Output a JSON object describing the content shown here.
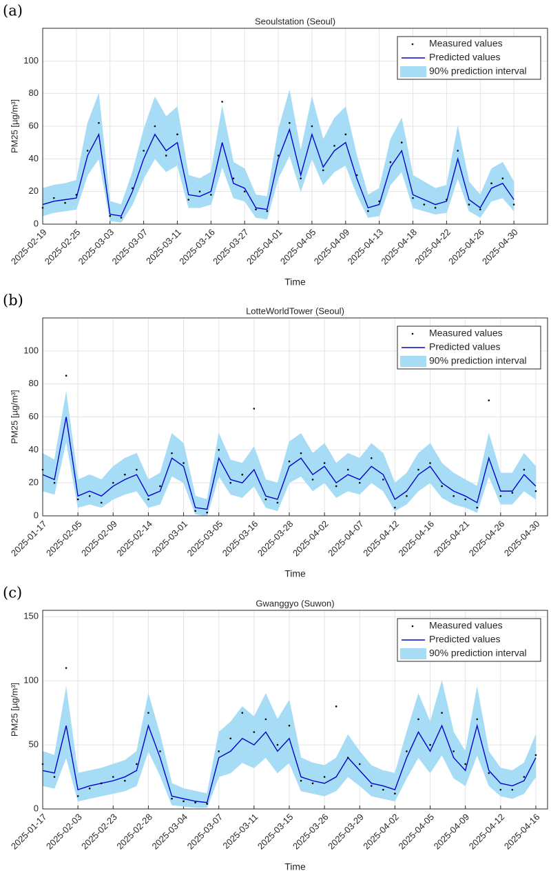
{
  "chart_data": [
    {
      "type": "line",
      "panel": "(a)",
      "title": "Seoulstation (Seoul)",
      "xlabel": "Time",
      "ylabel": "PM25 [µg/m³]",
      "xlim": [
        0,
        45
      ],
      "ylim": [
        0,
        120
      ],
      "yticks": [
        0,
        20,
        40,
        60,
        80,
        100
      ],
      "grid": true,
      "legend": "upper right",
      "xticks": [
        {
          "value": 0,
          "label": "2025-02-19"
        },
        {
          "value": 3,
          "label": "2025-02-25"
        },
        {
          "value": 6,
          "label": "2025-03-03"
        },
        {
          "value": 9,
          "label": "2025-03-07"
        },
        {
          "value": 12,
          "label": "2025-03-11"
        },
        {
          "value": 15,
          "label": "2025-03-16"
        },
        {
          "value": 18,
          "label": "2025-03-27"
        },
        {
          "value": 21,
          "label": "2025-04-01"
        },
        {
          "value": 24,
          "label": "2025-04-05"
        },
        {
          "value": 27,
          "label": "2025-04-09"
        },
        {
          "value": 30,
          "label": "2025-04-13"
        },
        {
          "value": 33,
          "label": "2025-04-18"
        },
        {
          "value": 36,
          "label": "2025-04-22"
        },
        {
          "value": 39,
          "label": "2025-04-26"
        },
        {
          "value": 42,
          "label": "2025-04-30"
        }
      ],
      "series": [
        {
          "name": "Measured values",
          "style": "points",
          "color": "#000000",
          "values": [
            10,
            16,
            13,
            18,
            45,
            62,
            5,
            4,
            22,
            45,
            60,
            42,
            55,
            15,
            20,
            18,
            75,
            28,
            20,
            9,
            8,
            42,
            62,
            28,
            60,
            33,
            48,
            55,
            30,
            8,
            14,
            38,
            50,
            16,
            12,
            10,
            15,
            45,
            12,
            9,
            25,
            28,
            12
          ]
        },
        {
          "name": "Predicted values",
          "style": "line",
          "color": "#0000cc",
          "values": [
            12,
            14,
            15,
            16,
            42,
            55,
            6,
            5,
            20,
            40,
            55,
            45,
            50,
            18,
            17,
            20,
            50,
            25,
            22,
            10,
            9,
            40,
            58,
            30,
            55,
            35,
            45,
            50,
            28,
            10,
            12,
            35,
            45,
            18,
            15,
            12,
            14,
            40,
            15,
            10,
            22,
            25,
            15
          ]
        },
        {
          "name": "90% prediction interval",
          "style": "band",
          "color": "#a6dcf5",
          "lower": [
            5,
            7,
            8,
            9,
            30,
            40,
            2,
            1,
            12,
            28,
            40,
            32,
            36,
            10,
            10,
            12,
            35,
            16,
            14,
            4,
            3,
            28,
            42,
            20,
            40,
            24,
            32,
            36,
            18,
            4,
            5,
            24,
            32,
            10,
            8,
            6,
            7,
            28,
            8,
            4,
            14,
            16,
            8
          ],
          "upper": [
            22,
            24,
            25,
            27,
            62,
            80,
            14,
            12,
            32,
            58,
            78,
            66,
            72,
            30,
            28,
            32,
            72,
            38,
            34,
            18,
            17,
            58,
            82,
            45,
            78,
            52,
            65,
            72,
            42,
            18,
            22,
            52,
            65,
            30,
            26,
            22,
            24,
            60,
            26,
            18,
            34,
            38,
            26
          ]
        }
      ]
    },
    {
      "type": "line",
      "panel": "(b)",
      "title": "LotteWorldTower (Seoul)",
      "xlabel": "Time",
      "ylabel": "PM25 [µg/m³]",
      "xlim": [
        0,
        43
      ],
      "ylim": [
        0,
        120
      ],
      "yticks": [
        0,
        20,
        40,
        60,
        80,
        100
      ],
      "grid": true,
      "legend": "upper right",
      "xticks": [
        {
          "value": 0,
          "label": "2025-01-17"
        },
        {
          "value": 3,
          "label": "2025-02-05"
        },
        {
          "value": 6,
          "label": "2025-02-09"
        },
        {
          "value": 9,
          "label": "2025-02-14"
        },
        {
          "value": 12,
          "label": "2025-03-01"
        },
        {
          "value": 15,
          "label": "2025-03-05"
        },
        {
          "value": 18,
          "label": "2025-03-16"
        },
        {
          "value": 21,
          "label": "2025-03-28"
        },
        {
          "value": 24,
          "label": "2025-04-02"
        },
        {
          "value": 27,
          "label": "2025-04-07"
        },
        {
          "value": 30,
          "label": "2025-04-12"
        },
        {
          "value": 33,
          "label": "2025-04-16"
        },
        {
          "value": 36,
          "label": "2025-04-21"
        },
        {
          "value": 39,
          "label": "2025-04-26"
        },
        {
          "value": 42,
          "label": "2025-04-30"
        }
      ],
      "series": [
        {
          "name": "Measured values",
          "style": "points",
          "color": "#000000",
          "values": [
            28,
            20,
            85,
            10,
            12,
            8,
            20,
            25,
            28,
            10,
            18,
            38,
            32,
            3,
            2,
            40,
            20,
            25,
            65,
            10,
            8,
            33,
            38,
            22,
            32,
            18,
            28,
            20,
            35,
            22,
            5,
            12,
            28,
            32,
            18,
            12,
            10,
            5,
            70,
            12,
            14,
            28,
            15
          ]
        },
        {
          "name": "Predicted values",
          "style": "line",
          "color": "#0000cc",
          "values": [
            25,
            22,
            60,
            12,
            15,
            12,
            18,
            22,
            25,
            12,
            15,
            35,
            30,
            5,
            4,
            35,
            22,
            20,
            28,
            12,
            10,
            30,
            35,
            25,
            30,
            20,
            25,
            22,
            30,
            25,
            10,
            15,
            25,
            30,
            20,
            15,
            12,
            8,
            35,
            15,
            15,
            25,
            18
          ]
        },
        {
          "name": "90% prediction interval",
          "style": "band",
          "color": "#a6dcf5",
          "lower": [
            15,
            13,
            45,
            5,
            7,
            5,
            10,
            13,
            15,
            5,
            7,
            24,
            20,
            1,
            0,
            24,
            13,
            11,
            18,
            5,
            3,
            20,
            24,
            15,
            20,
            11,
            15,
            13,
            20,
            15,
            3,
            7,
            15,
            20,
            11,
            7,
            5,
            2,
            24,
            7,
            7,
            15,
            10
          ],
          "upper": [
            38,
            34,
            75,
            22,
            25,
            22,
            30,
            35,
            38,
            22,
            26,
            50,
            44,
            12,
            10,
            50,
            34,
            32,
            42,
            22,
            20,
            45,
            50,
            38,
            44,
            32,
            38,
            35,
            44,
            38,
            20,
            26,
            38,
            44,
            32,
            26,
            22,
            18,
            50,
            26,
            26,
            38,
            30
          ]
        }
      ]
    },
    {
      "type": "line",
      "panel": "(c)",
      "title": "Gwanggyo (Suwon)",
      "xlabel": "Time",
      "ylabel": "PM25 [µg/m³]",
      "xlim": [
        0,
        43
      ],
      "ylim": [
        0,
        155
      ],
      "yticks": [
        0,
        50,
        100,
        150
      ],
      "grid": true,
      "legend": "upper right",
      "xticks": [
        {
          "value": 0,
          "label": "2025-01-17"
        },
        {
          "value": 3,
          "label": "2025-02-03"
        },
        {
          "value": 6,
          "label": "2025-02-23"
        },
        {
          "value": 9,
          "label": "2025-02-28"
        },
        {
          "value": 12,
          "label": "2025-03-04"
        },
        {
          "value": 15,
          "label": "2025-03-07"
        },
        {
          "value": 18,
          "label": "2025-03-11"
        },
        {
          "value": 21,
          "label": "2025-03-15"
        },
        {
          "value": 24,
          "label": "2025-03-26"
        },
        {
          "value": 27,
          "label": "2025-03-29"
        },
        {
          "value": 30,
          "label": "2025-04-02"
        },
        {
          "value": 33,
          "label": "2025-04-05"
        },
        {
          "value": 36,
          "label": "2025-04-09"
        },
        {
          "value": 39,
          "label": "2025-04-12"
        },
        {
          "value": 42,
          "label": "2025-04-16"
        }
      ],
      "series": [
        {
          "name": "Measured values",
          "style": "points",
          "color": "#000000",
          "values": [
            35,
            25,
            110,
            10,
            16,
            20,
            25,
            22,
            35,
            75,
            45,
            8,
            6,
            5,
            4,
            45,
            55,
            75,
            60,
            70,
            50,
            65,
            22,
            20,
            25,
            80,
            40,
            35,
            18,
            15,
            12,
            45,
            70,
            50,
            75,
            45,
            35,
            70,
            28,
            15,
            15,
            25,
            42
          ]
        },
        {
          "name": "Predicted values",
          "style": "line",
          "color": "#0000cc",
          "values": [
            30,
            28,
            65,
            15,
            18,
            20,
            22,
            25,
            30,
            65,
            40,
            10,
            8,
            6,
            5,
            40,
            45,
            55,
            50,
            60,
            45,
            55,
            25,
            22,
            20,
            25,
            40,
            30,
            20,
            18,
            15,
            40,
            60,
            45,
            65,
            40,
            30,
            65,
            30,
            20,
            18,
            22,
            40
          ]
        },
        {
          "name": "90% prediction interval",
          "style": "band",
          "color": "#a6dcf5",
          "lower": [
            18,
            16,
            40,
            6,
            8,
            10,
            12,
            14,
            18,
            45,
            26,
            3,
            2,
            1,
            1,
            25,
            28,
            36,
            32,
            40,
            28,
            36,
            14,
            12,
            10,
            14,
            25,
            18,
            10,
            8,
            6,
            24,
            40,
            28,
            42,
            24,
            18,
            42,
            18,
            10,
            8,
            12,
            25
          ],
          "upper": [
            45,
            42,
            95,
            28,
            30,
            32,
            35,
            38,
            45,
            90,
            58,
            20,
            16,
            14,
            12,
            60,
            68,
            80,
            72,
            90,
            70,
            85,
            40,
            36,
            34,
            40,
            58,
            45,
            34,
            30,
            28,
            60,
            90,
            68,
            100,
            60,
            45,
            95,
            45,
            32,
            30,
            36,
            58
          ]
        }
      ]
    }
  ]
}
